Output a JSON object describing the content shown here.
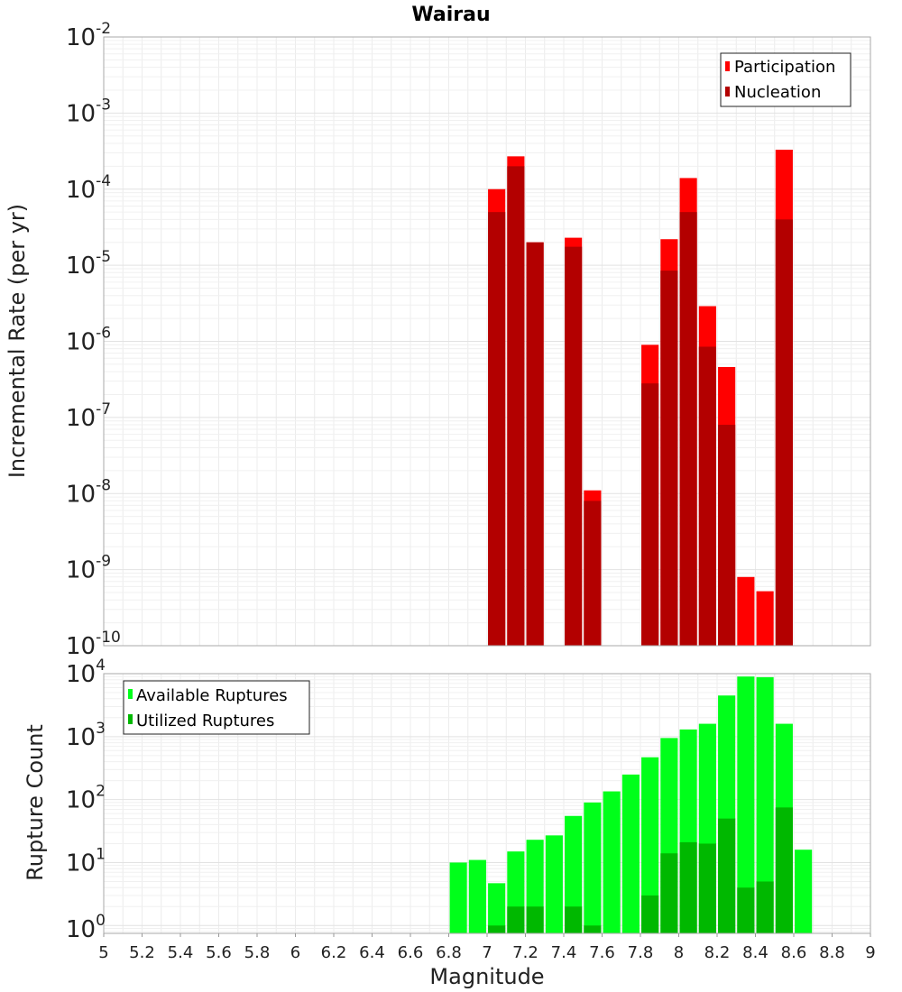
{
  "chart_data": [
    {
      "type": "bar",
      "title": "Wairau",
      "xlabel": "",
      "ylabel": "Incremental Rate (per yr)",
      "y_scale": "log",
      "ylim": [
        1e-10,
        0.01
      ],
      "y_tick_exponents": [
        -2,
        -3,
        -4,
        -5,
        -6,
        -7,
        -8,
        -9,
        -10
      ],
      "xlim": [
        5.0,
        9.0
      ],
      "grid": true,
      "legend_placement": "top-right",
      "overlay": true,
      "series": [
        {
          "name": "Participation",
          "color": "#ff0000",
          "points": [
            {
              "x": 7.05,
              "y": 0.0001
            },
            {
              "x": 7.15,
              "y": 0.00027
            },
            {
              "x": 7.25,
              "y": 2e-05
            },
            {
              "x": 7.45,
              "y": 2.3e-05
            },
            {
              "x": 7.55,
              "y": 1.1e-08
            },
            {
              "x": 7.85,
              "y": 9e-07
            },
            {
              "x": 7.95,
              "y": 2.2e-05
            },
            {
              "x": 8.05,
              "y": 0.00014
            },
            {
              "x": 8.15,
              "y": 2.9e-06
            },
            {
              "x": 8.25,
              "y": 4.6e-07
            },
            {
              "x": 8.35,
              "y": 8e-10
            },
            {
              "x": 8.45,
              "y": 5.2e-10
            },
            {
              "x": 8.55,
              "y": 0.00033
            }
          ]
        },
        {
          "name": "Nucleation",
          "color": "#b30000",
          "points": [
            {
              "x": 7.05,
              "y": 5e-05
            },
            {
              "x": 7.15,
              "y": 0.0002
            },
            {
              "x": 7.25,
              "y": 2e-05
            },
            {
              "x": 7.45,
              "y": 1.75e-05
            },
            {
              "x": 7.55,
              "y": 8e-09
            },
            {
              "x": 7.85,
              "y": 2.8e-07
            },
            {
              "x": 7.95,
              "y": 8.5e-06
            },
            {
              "x": 8.05,
              "y": 5e-05
            },
            {
              "x": 8.15,
              "y": 8.5e-07
            },
            {
              "x": 8.25,
              "y": 8e-08
            },
            {
              "x": 8.55,
              "y": 4e-05
            }
          ]
        }
      ]
    },
    {
      "type": "bar",
      "title": "",
      "xlabel": "Magnitude",
      "ylabel": "Rupture Count",
      "y_scale": "log",
      "ylim": [
        0.75,
        10000
      ],
      "y_tick_exponents": [
        4,
        3,
        2,
        1,
        0
      ],
      "xlim": [
        5.0,
        9.0
      ],
      "x_ticks": [
        "5",
        "5.2",
        "5.4",
        "5.6",
        "5.8",
        "6",
        "6.2",
        "6.4",
        "6.6",
        "6.8",
        "7",
        "7.2",
        "7.4",
        "7.6",
        "7.8",
        "8",
        "8.2",
        "8.4",
        "8.6",
        "8.8",
        "9"
      ],
      "grid": true,
      "legend_placement": "top-left",
      "overlay": true,
      "series": [
        {
          "name": "Available Ruptures",
          "color": "#00ff1a",
          "points": [
            {
              "x": 6.85,
              "y": 10
            },
            {
              "x": 6.95,
              "y": 11
            },
            {
              "x": 7.05,
              "y": 4.7
            },
            {
              "x": 7.15,
              "y": 15
            },
            {
              "x": 7.25,
              "y": 23
            },
            {
              "x": 7.35,
              "y": 27
            },
            {
              "x": 7.45,
              "y": 55
            },
            {
              "x": 7.55,
              "y": 90
            },
            {
              "x": 7.65,
              "y": 135
            },
            {
              "x": 7.75,
              "y": 250
            },
            {
              "x": 7.85,
              "y": 470
            },
            {
              "x": 7.95,
              "y": 950
            },
            {
              "x": 8.05,
              "y": 1300
            },
            {
              "x": 8.15,
              "y": 1600
            },
            {
              "x": 8.25,
              "y": 4500
            },
            {
              "x": 8.35,
              "y": 9000
            },
            {
              "x": 8.45,
              "y": 8800
            },
            {
              "x": 8.55,
              "y": 1600
            },
            {
              "x": 8.65,
              "y": 16
            }
          ]
        },
        {
          "name": "Utilized Ruptures",
          "color": "#00b800",
          "points": [
            {
              "x": 7.05,
              "y": 1
            },
            {
              "x": 7.15,
              "y": 2
            },
            {
              "x": 7.25,
              "y": 2
            },
            {
              "x": 7.45,
              "y": 2
            },
            {
              "x": 7.55,
              "y": 1
            },
            {
              "x": 7.85,
              "y": 3
            },
            {
              "x": 7.95,
              "y": 14
            },
            {
              "x": 8.05,
              "y": 21
            },
            {
              "x": 8.15,
              "y": 20
            },
            {
              "x": 8.25,
              "y": 50
            },
            {
              "x": 8.35,
              "y": 4
            },
            {
              "x": 8.45,
              "y": 5
            },
            {
              "x": 8.55,
              "y": 75
            }
          ]
        }
      ]
    }
  ]
}
